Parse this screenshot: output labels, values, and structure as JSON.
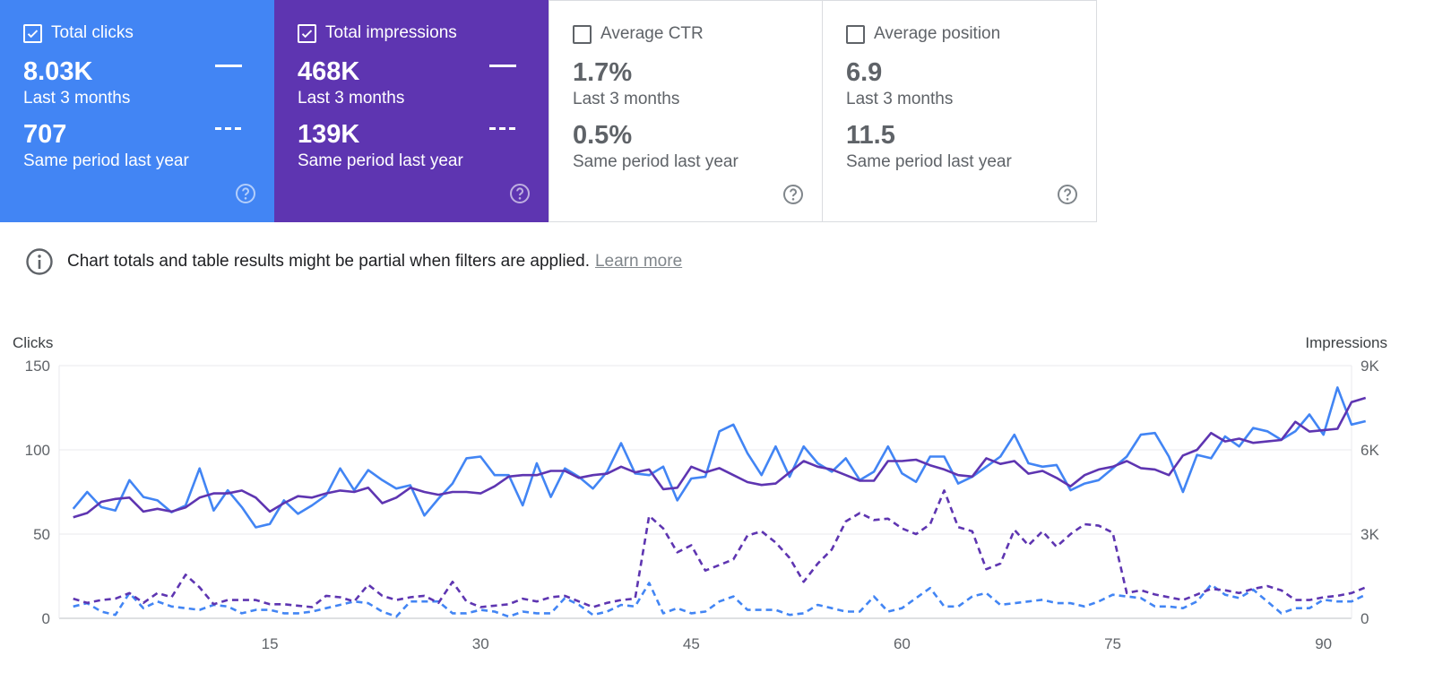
{
  "cards": [
    {
      "label": "Total clicks",
      "checked": true,
      "value": "8.03K",
      "period": "Last 3 months",
      "compare_value": "707",
      "compare_period": "Same period last year"
    },
    {
      "label": "Total impressions",
      "checked": true,
      "value": "468K",
      "period": "Last 3 months",
      "compare_value": "139K",
      "compare_period": "Same period last year"
    },
    {
      "label": "Average CTR",
      "checked": false,
      "value": "1.7%",
      "period": "Last 3 months",
      "compare_value": "0.5%",
      "compare_period": "Same period last year"
    },
    {
      "label": "Average position",
      "checked": false,
      "value": "6.9",
      "period": "Last 3 months",
      "compare_value": "11.5",
      "compare_period": "Same period last year"
    }
  ],
  "notice": {
    "text": "Chart totals and table results might be partial when filters are applied.",
    "link": "Learn more"
  },
  "colors": {
    "clicks": "#4285f4",
    "impressions": "#5e35b1",
    "grid": "#e8eaed"
  },
  "chart_data": {
    "type": "line",
    "x_ticks": [
      "15",
      "30",
      "45",
      "60",
      "75",
      "90"
    ],
    "y_left": {
      "label": "Clicks",
      "ticks": [
        "0",
        "50",
        "100",
        "150"
      ],
      "range": [
        0,
        150
      ]
    },
    "y_right": {
      "label": "Impressions",
      "ticks": [
        "0",
        "3K",
        "6K",
        "9K"
      ],
      "range": [
        0,
        9000
      ]
    },
    "x_range": [
      0,
      92
    ],
    "series": [
      {
        "metric": "clicks",
        "style": "solid",
        "axis": "left",
        "values": [
          65,
          75,
          66,
          64,
          82,
          72,
          70,
          63,
          67,
          89,
          64,
          76,
          66,
          54,
          56,
          70,
          62,
          67,
          73,
          89,
          76,
          88,
          82,
          77,
          79,
          61,
          71,
          80,
          95,
          96,
          85,
          85,
          67,
          92,
          72,
          89,
          84,
          77,
          87,
          104,
          86,
          85,
          90,
          70,
          83,
          84,
          111,
          115,
          98,
          85,
          102,
          84,
          102,
          92,
          87,
          95,
          82,
          87,
          102,
          86,
          81,
          96,
          96,
          80,
          84,
          90,
          96,
          109,
          92,
          90,
          91,
          76,
          80,
          82,
          89,
          96,
          109,
          110,
          96,
          75,
          97,
          95,
          108,
          102,
          113,
          111,
          106,
          111,
          121,
          109,
          137,
          115,
          117
        ]
      },
      {
        "metric": "impressions",
        "style": "solid",
        "axis": "right",
        "values": [
          3600,
          3750,
          4150,
          4250,
          4300,
          3800,
          3900,
          3800,
          3950,
          4300,
          4450,
          4450,
          4550,
          4300,
          3800,
          4100,
          4350,
          4300,
          4450,
          4550,
          4500,
          4650,
          4100,
          4300,
          4650,
          4500,
          4400,
          4500,
          4500,
          4450,
          4700,
          5050,
          5100,
          5100,
          5250,
          5250,
          5000,
          5100,
          5150,
          5400,
          5200,
          5300,
          4600,
          4650,
          5400,
          5200,
          5350,
          5100,
          4850,
          4750,
          4800,
          5200,
          5600,
          5400,
          5300,
          5100,
          4900,
          4900,
          5600,
          5600,
          5650,
          5450,
          5300,
          5100,
          5050,
          5700,
          5500,
          5600,
          5150,
          5250,
          5000,
          4700,
          5100,
          5300,
          5400,
          5600,
          5350,
          5300,
          5100,
          5800,
          6000,
          6600,
          6300,
          6400,
          6250,
          6300,
          6350,
          7000,
          6650,
          6700,
          6750,
          7700,
          7850
        ]
      },
      {
        "metric": "clicks",
        "style": "dashed",
        "axis": "left",
        "values": [
          7,
          9,
          4,
          2,
          15,
          6,
          10,
          7,
          6,
          5,
          8,
          7,
          3,
          5,
          5,
          3,
          3,
          4,
          6,
          8,
          10,
          9,
          4,
          1,
          10,
          10,
          10,
          3,
          3,
          5,
          4,
          1,
          4,
          3,
          3,
          12,
          8,
          2,
          4,
          8,
          7,
          21,
          3,
          6,
          3,
          4,
          10,
          13,
          5,
          5,
          5,
          2,
          3,
          8,
          6,
          4,
          4,
          13,
          4,
          6,
          12,
          18,
          7,
          7,
          13,
          15,
          8,
          9,
          10,
          11,
          9,
          9,
          7,
          10,
          14,
          13,
          12,
          7,
          7,
          6,
          10,
          20,
          14,
          12,
          17,
          10,
          3,
          6,
          6,
          11,
          10,
          10,
          14
        ]
      },
      {
        "metric": "impressions",
        "style": "dashed",
        "axis": "right",
        "values": [
          700,
          550,
          650,
          700,
          900,
          550,
          900,
          750,
          1550,
          1100,
          500,
          650,
          650,
          650,
          500,
          500,
          450,
          400,
          800,
          750,
          600,
          1200,
          800,
          650,
          750,
          800,
          550,
          1300,
          600,
          400,
          450,
          500,
          700,
          600,
          750,
          800,
          600,
          400,
          550,
          650,
          700,
          3650,
          3200,
          2350,
          2600,
          1700,
          1900,
          2100,
          2950,
          3100,
          2700,
          2150,
          1300,
          1950,
          2450,
          3450,
          3750,
          3500,
          3550,
          3200,
          3000,
          3350,
          4550,
          3250,
          3100,
          1750,
          1950,
          3150,
          2600,
          3100,
          2550,
          3000,
          3350,
          3300,
          3050,
          900,
          1000,
          850,
          750,
          650,
          850,
          1050,
          1000,
          900,
          1050,
          1150,
          1000,
          650,
          650,
          750,
          800,
          900,
          1100
        ]
      }
    ]
  }
}
